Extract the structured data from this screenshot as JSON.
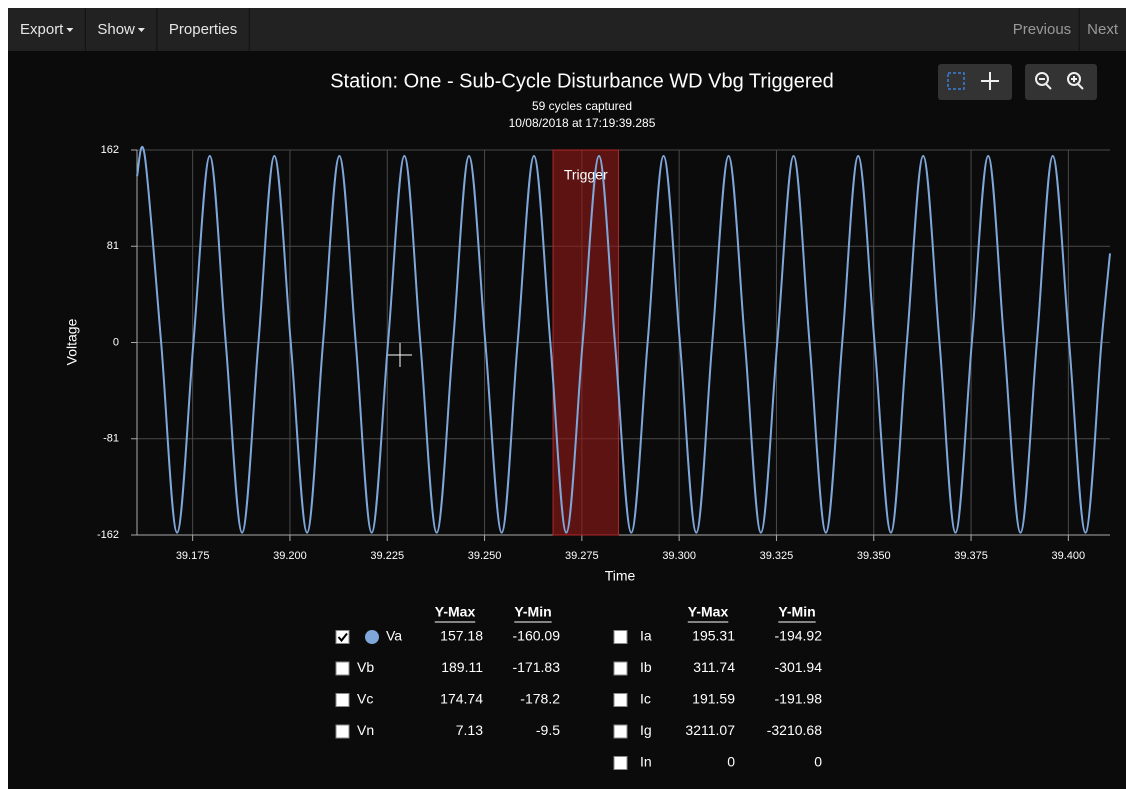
{
  "toolbar": {
    "left": [
      "Export",
      "Show",
      "Properties"
    ],
    "dropdowns": [
      true,
      true,
      false
    ],
    "right": [
      "Previous",
      "Next"
    ]
  },
  "chart_data": {
    "type": "line",
    "title": "Station: One - Sub-Cycle Disturbance WD Vbg Triggered",
    "subtitle": [
      "59 cycles captured",
      "10/08/2018 at 17:19:39.285"
    ],
    "xlabel": "Time",
    "ylabel": "Voltage",
    "x": [
      39.1607,
      39.1627,
      39.1669,
      39.171,
      39.1752,
      39.1794,
      39.1835,
      39.1877,
      39.1919,
      39.196,
      39.2002,
      39.2044,
      39.2085,
      39.2127,
      39.2169,
      39.221,
      39.2252,
      39.2294,
      39.2335,
      39.2377,
      39.2419,
      39.246,
      39.2502,
      39.2544,
      39.2585,
      39.2627,
      39.2669,
      39.271,
      39.2752,
      39.2794,
      39.2835,
      39.2877,
      39.2919,
      39.296,
      39.3002,
      39.3044,
      39.3085,
      39.3127,
      39.3169,
      39.321,
      39.3252,
      39.3294,
      39.3335,
      39.3377,
      39.3419,
      39.346,
      39.3502,
      39.3544,
      39.3585,
      39.3627,
      39.3669,
      39.371,
      39.3752,
      39.3794,
      39.3835,
      39.3877,
      39.3919,
      39.396,
      39.4002,
      39.4044,
      39.4085,
      39.4107
    ],
    "series": [
      {
        "color": "#7fa7d9",
        "values": [
          140,
          157,
          0,
          -160,
          0,
          157,
          0,
          -160,
          0,
          157,
          0,
          -160,
          0,
          157,
          0,
          -160,
          0,
          157,
          0,
          -160,
          0,
          157,
          0,
          -160,
          0,
          157,
          0,
          -160,
          0,
          157,
          0,
          -160,
          0,
          157,
          0,
          -160,
          0,
          157,
          0,
          -160,
          0,
          157,
          0,
          -160,
          0,
          157,
          0,
          -160,
          0,
          157,
          0,
          -160,
          0,
          157,
          0,
          -160,
          0,
          157,
          0,
          -160,
          0,
          75
        ]
      }
    ],
    "trigger": {
      "label": "Trigger",
      "x": [
        39.2676,
        39.2844
      ]
    },
    "xlim": [
      39.1607,
      39.4107
    ],
    "xticks": [
      39.175,
      {
        "value": 39.2,
        "label": "39.200"
      },
      39.225,
      {
        "value": 39.25,
        "label": "39.250"
      },
      39.275,
      {
        "value": 39.3,
        "label": "39.300"
      },
      39.325,
      {
        "value": 39.35,
        "label": "39.350"
      },
      39.375,
      {
        "value": 39.4,
        "label": "39.400"
      }
    ],
    "ylim": [
      -162,
      162
    ],
    "yticks": [
      -162,
      -81,
      0,
      81,
      162
    ],
    "grid": true
  },
  "legend": {
    "groups": [
      {
        "headers": [
          "Y-Max",
          "Y-Min"
        ],
        "rows": [
          {
            "name": "Va",
            "checked": true,
            "y_max": 157.18,
            "y_min": -160.09
          },
          {
            "name": "Vb",
            "checked": false,
            "y_max": 189.11,
            "y_min": -171.83
          },
          {
            "name": "Vc",
            "checked": false,
            "y_max": 174.74,
            "y_min": -178.2
          },
          {
            "name": "Vn",
            "checked": false,
            "y_max": 7.13,
            "y_min": -9.5
          }
        ]
      },
      {
        "headers": [
          "Y-Max",
          "Y-Min"
        ],
        "rows": [
          {
            "name": "Ia",
            "checked": false,
            "y_max": 195.31,
            "y_min": -194.92
          },
          {
            "name": "Ib",
            "checked": false,
            "y_max": 311.74,
            "y_min": -301.94
          },
          {
            "name": "Ic",
            "checked": false,
            "y_max": 191.59,
            "y_min": -191.98
          },
          {
            "name": "Ig",
            "checked": false,
            "y_max": 3211.07,
            "y_min": -3210.68
          },
          {
            "name": "In",
            "checked": false,
            "y_max": 0,
            "y_min": 0
          }
        ]
      }
    ]
  }
}
